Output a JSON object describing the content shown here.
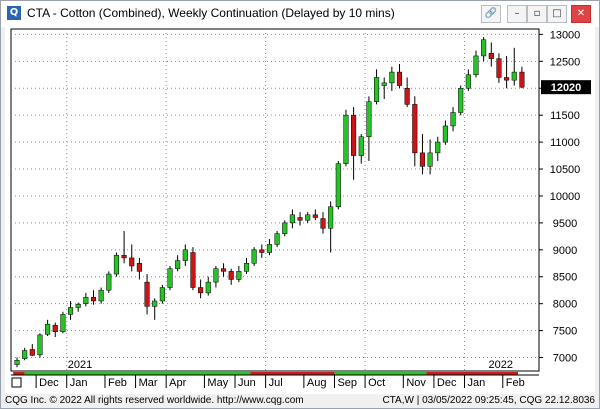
{
  "window": {
    "title": "CTA - Cotton (Combined), Weekly Continuation (Delayed by 10 mins)",
    "buttons": {
      "link": "🔗",
      "minimize": "–",
      "restore": "▫",
      "maximize": "□",
      "close": "✕"
    }
  },
  "status": {
    "copyright": "CQG Inc. © 2022 All rights reserved worldwide. http://www.cqg.com",
    "right": "CTA,W | 03/05/2022 09:25:45, CQG 22.12.8036"
  },
  "chart_data": {
    "type": "candlestick",
    "symbol": "CTA",
    "ylim": [
      6750,
      13100
    ],
    "y_ticks": [
      7000,
      7500,
      8000,
      8500,
      9000,
      9500,
      10000,
      10500,
      11000,
      11500,
      12000,
      12500,
      13000
    ],
    "y_tick_labels": [
      "7000",
      "7500",
      "8000",
      "8500",
      "9000",
      "9500",
      "10000",
      "10500",
      "11000",
      "11500",
      "12000",
      "12500",
      "13000"
    ],
    "last_price": 12020,
    "last_price_label": "12020",
    "year_labels": [
      {
        "label": "2021",
        "week": 7
      },
      {
        "label": "2022",
        "week": 62
      }
    ],
    "month_labels": [
      {
        "label": "Dec",
        "week": 3
      },
      {
        "label": "Jan",
        "week": 7
      },
      {
        "label": "Feb",
        "week": 12
      },
      {
        "label": "Mar",
        "week": 16
      },
      {
        "label": "Apr",
        "week": 20
      },
      {
        "label": "May",
        "week": 25
      },
      {
        "label": "Jun",
        "week": 29
      },
      {
        "label": "Jul",
        "week": 33
      },
      {
        "label": "Aug",
        "week": 38
      },
      {
        "label": "Sep",
        "week": 42
      },
      {
        "label": "Oct",
        "week": 46
      },
      {
        "label": "Nov",
        "week": 51
      },
      {
        "label": "Dec",
        "week": 55
      },
      {
        "label": "Jan",
        "week": 59
      },
      {
        "label": "Feb",
        "week": 64
      }
    ],
    "gridlines_weeks": [
      7,
      20,
      33,
      46,
      59
    ],
    "colors": {
      "up": "#27c227",
      "down": "#cc1414",
      "wick": "#000000",
      "session_bar_green": "#2fbf2f",
      "session_bar_red": "#c02020"
    },
    "bars": [
      {
        "o": 6870,
        "h": 7000,
        "l": 6820,
        "c": 6950
      },
      {
        "o": 6980,
        "h": 7180,
        "l": 6950,
        "c": 7130
      },
      {
        "o": 7150,
        "h": 7250,
        "l": 7030,
        "c": 7040
      },
      {
        "o": 7050,
        "h": 7450,
        "l": 7000,
        "c": 7420
      },
      {
        "o": 7430,
        "h": 7700,
        "l": 7400,
        "c": 7620
      },
      {
        "o": 7600,
        "h": 7650,
        "l": 7380,
        "c": 7480
      },
      {
        "o": 7480,
        "h": 7850,
        "l": 7450,
        "c": 7800
      },
      {
        "o": 7800,
        "h": 8050,
        "l": 7700,
        "c": 7930
      },
      {
        "o": 7930,
        "h": 8020,
        "l": 7850,
        "c": 7990
      },
      {
        "o": 8000,
        "h": 8200,
        "l": 7950,
        "c": 8120
      },
      {
        "o": 8120,
        "h": 8250,
        "l": 7980,
        "c": 8050
      },
      {
        "o": 8050,
        "h": 8300,
        "l": 8000,
        "c": 8250
      },
      {
        "o": 8250,
        "h": 8600,
        "l": 8200,
        "c": 8550
      },
      {
        "o": 8550,
        "h": 8950,
        "l": 8500,
        "c": 8900
      },
      {
        "o": 8900,
        "h": 9350,
        "l": 8750,
        "c": 8850
      },
      {
        "o": 8850,
        "h": 9100,
        "l": 8600,
        "c": 8700
      },
      {
        "o": 8750,
        "h": 8850,
        "l": 8450,
        "c": 8600
      },
      {
        "o": 8400,
        "h": 8550,
        "l": 7800,
        "c": 7950
      },
      {
        "o": 7950,
        "h": 8100,
        "l": 7700,
        "c": 8050
      },
      {
        "o": 8050,
        "h": 8350,
        "l": 8000,
        "c": 8300
      },
      {
        "o": 8300,
        "h": 8700,
        "l": 8250,
        "c": 8650
      },
      {
        "o": 8650,
        "h": 8900,
        "l": 8600,
        "c": 8800
      },
      {
        "o": 8800,
        "h": 9100,
        "l": 8700,
        "c": 9000
      },
      {
        "o": 8950,
        "h": 9050,
        "l": 8250,
        "c": 8300
      },
      {
        "o": 8300,
        "h": 8450,
        "l": 8100,
        "c": 8200
      },
      {
        "o": 8200,
        "h": 8500,
        "l": 8150,
        "c": 8400
      },
      {
        "o": 8400,
        "h": 8700,
        "l": 8300,
        "c": 8650
      },
      {
        "o": 8650,
        "h": 8750,
        "l": 8500,
        "c": 8600
      },
      {
        "o": 8600,
        "h": 8650,
        "l": 8350,
        "c": 8450
      },
      {
        "o": 8450,
        "h": 8700,
        "l": 8400,
        "c": 8600
      },
      {
        "o": 8600,
        "h": 8850,
        "l": 8550,
        "c": 8750
      },
      {
        "o": 8750,
        "h": 9050,
        "l": 8700,
        "c": 9000
      },
      {
        "o": 9000,
        "h": 9100,
        "l": 8850,
        "c": 8950
      },
      {
        "o": 8950,
        "h": 9200,
        "l": 8900,
        "c": 9100
      },
      {
        "o": 9100,
        "h": 9350,
        "l": 9050,
        "c": 9300
      },
      {
        "o": 9300,
        "h": 9550,
        "l": 9250,
        "c": 9500
      },
      {
        "o": 9500,
        "h": 9750,
        "l": 9400,
        "c": 9650
      },
      {
        "o": 9600,
        "h": 9700,
        "l": 9450,
        "c": 9550
      },
      {
        "o": 9550,
        "h": 9700,
        "l": 9500,
        "c": 9650
      },
      {
        "o": 9650,
        "h": 9750,
        "l": 9550,
        "c": 9600
      },
      {
        "o": 9580,
        "h": 9700,
        "l": 9300,
        "c": 9400
      },
      {
        "o": 9400,
        "h": 9900,
        "l": 8950,
        "c": 9800
      },
      {
        "o": 9800,
        "h": 10650,
        "l": 9750,
        "c": 10600
      },
      {
        "o": 10600,
        "h": 11600,
        "l": 10550,
        "c": 11500
      },
      {
        "o": 11500,
        "h": 11650,
        "l": 10300,
        "c": 10750
      },
      {
        "o": 10750,
        "h": 11150,
        "l": 10600,
        "c": 11100
      },
      {
        "o": 11100,
        "h": 11850,
        "l": 10650,
        "c": 11750
      },
      {
        "o": 11750,
        "h": 12350,
        "l": 11700,
        "c": 12200
      },
      {
        "o": 12050,
        "h": 12200,
        "l": 11800,
        "c": 12100
      },
      {
        "o": 12100,
        "h": 12400,
        "l": 11950,
        "c": 12300
      },
      {
        "o": 12300,
        "h": 12450,
        "l": 12000,
        "c": 12050
      },
      {
        "o": 12000,
        "h": 12200,
        "l": 11650,
        "c": 11700
      },
      {
        "o": 11700,
        "h": 11850,
        "l": 10550,
        "c": 10800
      },
      {
        "o": 10800,
        "h": 11150,
        "l": 10400,
        "c": 10550
      },
      {
        "o": 10550,
        "h": 11050,
        "l": 10400,
        "c": 10800
      },
      {
        "o": 10800,
        "h": 11100,
        "l": 10650,
        "c": 11000
      },
      {
        "o": 11000,
        "h": 11400,
        "l": 10950,
        "c": 11300
      },
      {
        "o": 11300,
        "h": 11650,
        "l": 11200,
        "c": 11550
      },
      {
        "o": 11550,
        "h": 12050,
        "l": 11500,
        "c": 12000
      },
      {
        "o": 12000,
        "h": 12350,
        "l": 11950,
        "c": 12250
      },
      {
        "o": 12250,
        "h": 12700,
        "l": 12200,
        "c": 12600
      },
      {
        "o": 12600,
        "h": 12950,
        "l": 12500,
        "c": 12900
      },
      {
        "o": 12650,
        "h": 12850,
        "l": 12400,
        "c": 12550
      },
      {
        "o": 12550,
        "h": 12650,
        "l": 12100,
        "c": 12200
      },
      {
        "o": 12200,
        "h": 12600,
        "l": 12000,
        "c": 12150
      },
      {
        "o": 12150,
        "h": 12750,
        "l": 12050,
        "c": 12300
      },
      {
        "o": 12300,
        "h": 12400,
        "l": 12000,
        "c": 12020
      }
    ],
    "session_segments": [
      {
        "from": 0,
        "to": 1.5,
        "color": "red"
      },
      {
        "from": 1.5,
        "to": 31,
        "color": "green"
      },
      {
        "from": 31,
        "to": 42,
        "color": "red"
      },
      {
        "from": 42,
        "to": 54,
        "color": "green"
      },
      {
        "from": 54,
        "to": 66,
        "color": "red"
      }
    ]
  }
}
